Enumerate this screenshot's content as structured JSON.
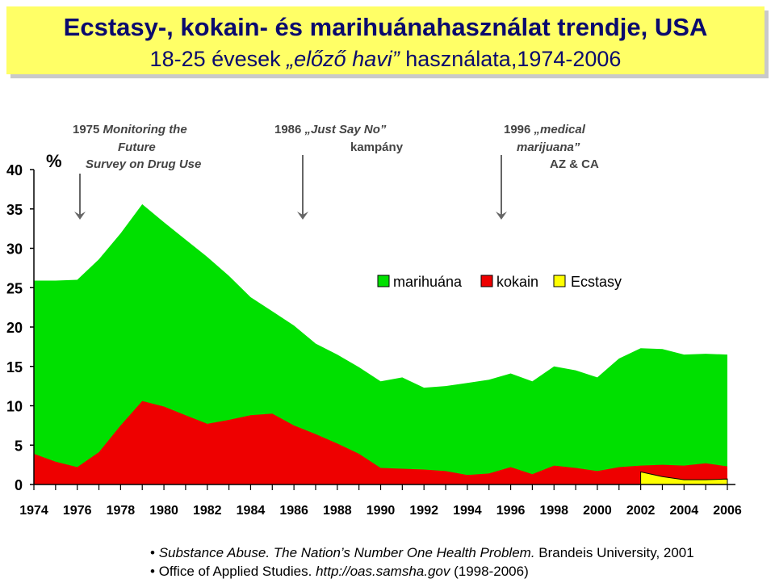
{
  "header": {
    "title": "Ecstasy-, kokain- és marihuánahasználat trendje, USA",
    "subtitle_pre": "18-25 évesek ",
    "subtitle_em": "„előző havi”",
    "subtitle_post": " használata,1974-2006"
  },
  "colors": {
    "marihuana": "#00e000",
    "kokain": "#ee0000",
    "ecstasy": "#ffff00",
    "title_bg": "#ffff66"
  },
  "chart_data": {
    "type": "area",
    "title": "Ecstasy-, kokain- és marihuánahasználat trendje, USA",
    "xlabel": "",
    "ylabel": "%",
    "xlim": [
      1974,
      2006
    ],
    "ylim": [
      0,
      40
    ],
    "yticks": [
      0,
      5,
      10,
      15,
      20,
      25,
      30,
      35,
      40
    ],
    "xticks": [
      1974,
      1976,
      1978,
      1980,
      1982,
      1984,
      1986,
      1988,
      1990,
      1992,
      1994,
      1996,
      1998,
      2000,
      2002,
      2004,
      2006
    ],
    "series": [
      {
        "name": "marihuána",
        "x": [
          1974,
          1975,
          1976,
          1977,
          1978,
          1979,
          1980,
          1981,
          1982,
          1983,
          1984,
          1985,
          1986,
          1987,
          1988,
          1989,
          1990,
          1991,
          1992,
          1993,
          1994,
          1995,
          1996,
          1997,
          1998,
          1999,
          2000,
          2001,
          2002,
          2003,
          2004,
          2005,
          2006
        ],
        "values": [
          25.9,
          25.9,
          26.0,
          28.6,
          31.9,
          35.6,
          33.3,
          31.1,
          28.9,
          26.5,
          23.8,
          22.0,
          20.2,
          17.9,
          16.5,
          14.9,
          13.1,
          13.6,
          12.3,
          12.5,
          12.9,
          13.3,
          14.1,
          13.1,
          15.0,
          14.5,
          13.6,
          16.0,
          17.3,
          17.2,
          16.5,
          16.6,
          16.5
        ]
      },
      {
        "name": "kokain",
        "x": [
          1974,
          1975,
          1976,
          1977,
          1978,
          1979,
          1980,
          1981,
          1982,
          1983,
          1984,
          1985,
          1986,
          1987,
          1988,
          1989,
          1990,
          1991,
          1992,
          1993,
          1994,
          1995,
          1996,
          1997,
          1998,
          1999,
          2000,
          2001,
          2002,
          2003,
          2004,
          2005,
          2006
        ],
        "values": [
          3.9,
          2.9,
          2.2,
          4.1,
          7.5,
          10.6,
          9.9,
          8.8,
          7.7,
          8.2,
          8.8,
          9.0,
          7.5,
          6.4,
          5.2,
          3.9,
          2.1,
          2.0,
          1.9,
          1.7,
          1.2,
          1.4,
          2.2,
          1.3,
          2.4,
          2.1,
          1.7,
          2.2,
          2.4,
          2.5,
          2.4,
          2.7,
          2.3
        ]
      },
      {
        "name": "Ecstasy",
        "x": [
          2002,
          2003,
          2004,
          2005,
          2006
        ],
        "values": [
          1.6,
          1.0,
          0.6,
          0.6,
          0.7
        ]
      }
    ],
    "legend": [
      "marihuána",
      "kokain",
      "Ecstasy"
    ],
    "legend_position": "top-right",
    "annotations": [
      {
        "year": 1975,
        "lines": [
          "1975 Monitoring the",
          "Future",
          "Survey on Drug Use"
        ]
      },
      {
        "year": 1986,
        "lines": [
          "1986 „Just Say No”",
          "kampány"
        ]
      },
      {
        "year": 1996,
        "lines": [
          "1996 „medical",
          "marijuana”",
          "AZ & CA"
        ]
      }
    ]
  },
  "sources": [
    {
      "italic": "Substance Abuse. The Nation’s Number One Health Problem.",
      "normal": " Brandeis University, 2001"
    },
    {
      "normal": "Office of Applied Studies. ",
      "italic": "http://oas.samsha.gov",
      "normal2": " (1998-2006)"
    }
  ]
}
